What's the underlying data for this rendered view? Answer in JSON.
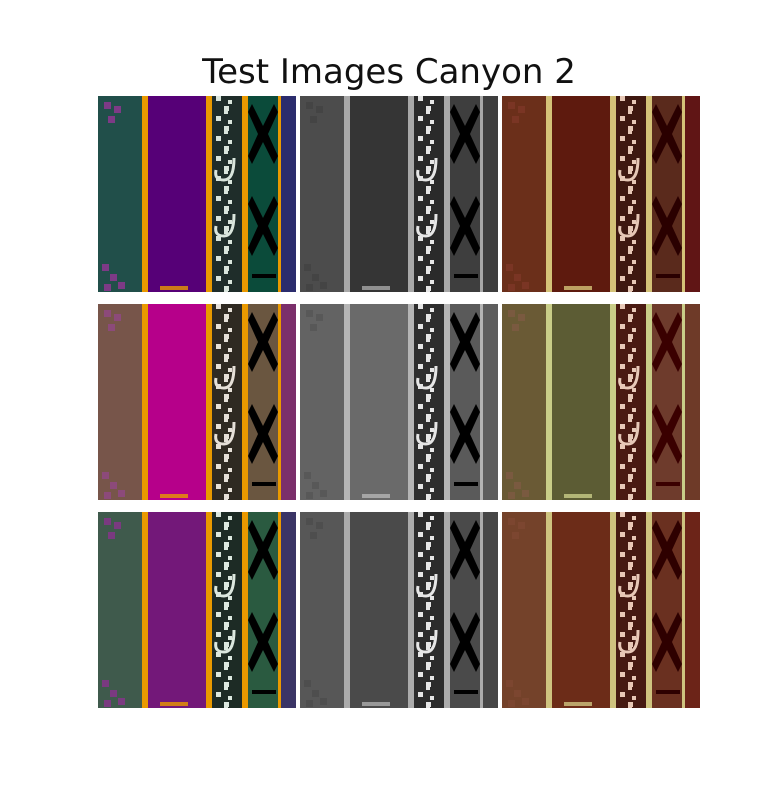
{
  "figure": {
    "title": "Test Images Canyon 2"
  },
  "grid": {
    "rows": 3,
    "cols": 3
  },
  "tiles": [
    {
      "row": 0,
      "col": 0,
      "name": "tile-r1-c1",
      "palette": {
        "bg": "#214f4a",
        "band": "#560077",
        "stripe": "#e99900",
        "pat": "#0b4b3a",
        "pat2": "#1f2d2a",
        "edge": "#2b2c6d",
        "dots": "#7d3a86",
        "ink": "#000000",
        "white": "#d9e5dc"
      }
    },
    {
      "row": 0,
      "col": 1,
      "name": "tile-r1-c2",
      "palette": {
        "bg": "#4c4c4c",
        "band": "#353535",
        "stripe": "#a8a8a8",
        "pat": "#3e3e3e",
        "pat2": "#2a2a2a",
        "edge": "#3e3e3e",
        "dots": "#444444",
        "ink": "#000000",
        "white": "#e6e6e6"
      }
    },
    {
      "row": 0,
      "col": 2,
      "name": "tile-r1-c3",
      "palette": {
        "bg": "#6b2f1a",
        "band": "#5e1a0e",
        "stripe": "#d4c278",
        "pat": "#5a2a1c",
        "pat2": "#3e1810",
        "edge": "#601515",
        "dots": "#7a3524",
        "ink": "#2a0000",
        "white": "#e6c7b5"
      }
    },
    {
      "row": 1,
      "col": 0,
      "name": "tile-r2-c1",
      "palette": {
        "bg": "#77554a",
        "band": "#b6008a",
        "stripe": "#e99900",
        "pat": "#6a5640",
        "pat2": "#2f2a22",
        "edge": "#7b2f6b",
        "dots": "#8c4a7a",
        "ink": "#000000",
        "white": "#e6e0d8"
      }
    },
    {
      "row": 1,
      "col": 1,
      "name": "tile-r2-c2",
      "palette": {
        "bg": "#636363",
        "band": "#6a6a6a",
        "stripe": "#b5b5b5",
        "pat": "#5a5a5a",
        "pat2": "#2e2e2e",
        "edge": "#5e5e5e",
        "dots": "#585858",
        "ink": "#000000",
        "white": "#e6e6e6"
      }
    },
    {
      "row": 1,
      "col": 2,
      "name": "tile-r2-c3",
      "palette": {
        "bg": "#6a5a35",
        "band": "#5c5c34",
        "stripe": "#c9cd88",
        "pat": "#6e3b2c",
        "pat2": "#4a1a12",
        "edge": "#6e3a28",
        "dots": "#7a5a40",
        "ink": "#3a0000",
        "white": "#e8c9b8"
      }
    },
    {
      "row": 2,
      "col": 0,
      "name": "tile-r3-c1",
      "palette": {
        "bg": "#3f5a4c",
        "band": "#731879",
        "stripe": "#e99900",
        "pat": "#2a5a40",
        "pat2": "#1d2b25",
        "edge": "#3b3566",
        "dots": "#7a3a80",
        "ink": "#000000",
        "white": "#dce8df"
      }
    },
    {
      "row": 2,
      "col": 1,
      "name": "tile-r3-c2",
      "palette": {
        "bg": "#575757",
        "band": "#4a4a4a",
        "stripe": "#ababab",
        "pat": "#4a4a4a",
        "pat2": "#2c2c2c",
        "edge": "#464646",
        "dots": "#4e4e4e",
        "ink": "#000000",
        "white": "#e6e6e6"
      }
    },
    {
      "row": 2,
      "col": 2,
      "name": "tile-r3-c3",
      "palette": {
        "bg": "#74422a",
        "band": "#6c2c18",
        "stripe": "#cfc37f",
        "pat": "#6a3020",
        "pat2": "#461a12",
        "edge": "#6c2418",
        "dots": "#7c4630",
        "ink": "#2e0000",
        "white": "#e8c8b6"
      }
    }
  ]
}
